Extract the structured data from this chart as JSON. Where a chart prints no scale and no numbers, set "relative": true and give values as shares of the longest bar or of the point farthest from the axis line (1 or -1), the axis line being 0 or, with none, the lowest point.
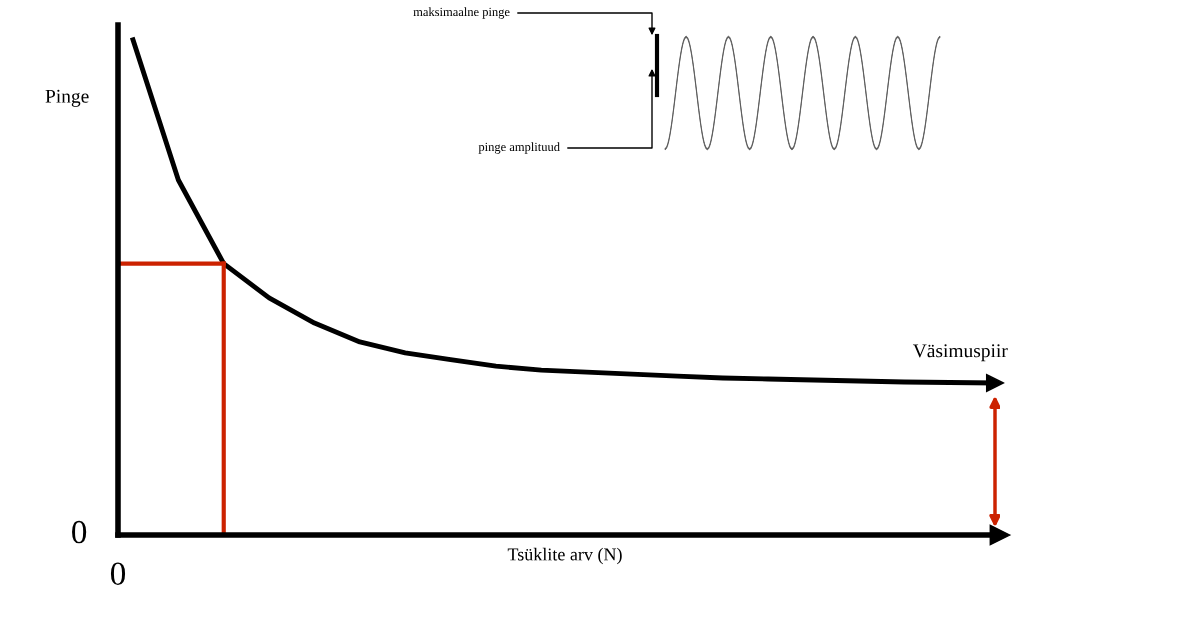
{
  "chart_data": {
    "type": "line",
    "relative": true,
    "xlabel": "Tsüklite arv (N)",
    "ylabel": "Pinge",
    "categories": [
      null,
      null,
      null,
      null,
      null,
      null,
      null,
      null,
      null,
      null,
      null,
      null,
      null,
      null,
      null,
      null,
      null,
      null,
      null,
      null
    ],
    "series": [
      {
        "color": "#000000",
        "values": [
          1.0,
          0.717,
          0.548,
          0.479,
          0.428,
          0.39,
          0.368,
          0.354,
          0.341,
          0.333,
          0.329,
          0.325,
          0.321,
          0.317,
          0.315,
          0.313,
          0.311,
          0.309,
          0.308,
          0.307
        ]
      }
    ],
    "ref_lines": [
      {
        "axis": "y",
        "value": 0.548,
        "color": "#cc2200"
      }
    ],
    "annotations": [
      "0",
      "0",
      "Väsimuspiir",
      "maksimaalne pinge",
      "pinge amplituud"
    ],
    "marker": "none",
    "line_style": "solid"
  }
}
